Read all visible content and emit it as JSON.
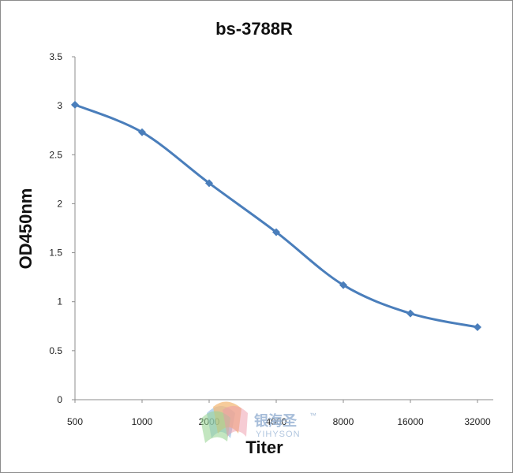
{
  "chart_data": {
    "type": "line",
    "title": "bs-3788R",
    "xlabel": "Titer",
    "ylabel": "OD450nm",
    "categories": [
      "500",
      "1000",
      "2000",
      "4000",
      "8000",
      "16000",
      "32000"
    ],
    "series": [
      {
        "values": [
          3.01,
          2.73,
          2.21,
          1.71,
          1.17,
          0.88,
          0.74
        ]
      }
    ],
    "ylim": [
      0,
      3.5
    ],
    "yticks": [
      "0",
      "0.5",
      "1",
      "1.5",
      "2",
      "2.5",
      "3",
      "3.5"
    ],
    "grid": false,
    "legend": "none",
    "line_color": "#4a7ebb",
    "marker": "diamond"
  },
  "watermark": {
    "logo": "yihyson-logo",
    "text_cn": "银海圣",
    "text_en": "YIHYSON",
    "tm": "™"
  }
}
